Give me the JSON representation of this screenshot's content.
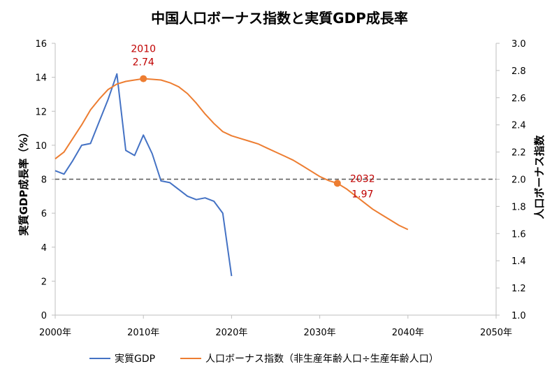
{
  "title": "中国人口ボーナス指数と実質GDP成長率",
  "chart_data": {
    "type": "line",
    "title": "中国人口ボーナス指数と実質GDP成長率",
    "xlabel": "",
    "ylabel_left": "実質GDP成長率（%）",
    "ylabel_right": "人口ボーナス指数",
    "xlim": [
      2000,
      2050
    ],
    "ylim_left": [
      0,
      16
    ],
    "ylim_right": [
      1.0,
      3.0
    ],
    "x_ticks": [
      "2000年",
      "2010年",
      "2020年",
      "2030年",
      "2040年",
      "2050年"
    ],
    "y_left_ticks": [
      "0",
      "2",
      "4",
      "6",
      "8",
      "10",
      "12",
      "14",
      "16"
    ],
    "y_right_ticks": [
      "1.0",
      "1.2",
      "1.4",
      "1.6",
      "1.8",
      "2.0",
      "2.2",
      "2.4",
      "2.6",
      "2.8",
      "3.0"
    ],
    "reference_line": {
      "axis": "right",
      "value": 2.0,
      "style": "dashed",
      "color": "#595959"
    },
    "grid": false,
    "legend_position": "bottom",
    "series": [
      {
        "name": "実質GDP",
        "axis": "left",
        "color": "#4472c4",
        "x": [
          2000,
          2001,
          2002,
          2003,
          2004,
          2005,
          2006,
          2007,
          2008,
          2009,
          2010,
          2011,
          2012,
          2013,
          2014,
          2015,
          2016,
          2017,
          2018,
          2019,
          2020
        ],
        "y": [
          8.5,
          8.3,
          9.1,
          10.0,
          10.1,
          11.4,
          12.7,
          14.2,
          9.7,
          9.4,
          10.6,
          9.5,
          7.9,
          7.8,
          7.4,
          7.0,
          6.8,
          6.9,
          6.7,
          6.0,
          2.3
        ]
      },
      {
        "name": "人口ボーナス指数（非生産年齢人口÷生産年齢人口）",
        "axis": "right",
        "color": "#ed7d31",
        "x": [
          2000,
          2001,
          2002,
          2003,
          2004,
          2005,
          2006,
          2007,
          2008,
          2009,
          2010,
          2011,
          2012,
          2013,
          2014,
          2015,
          2016,
          2017,
          2018,
          2019,
          2020,
          2021,
          2022,
          2023,
          2024,
          2025,
          2026,
          2027,
          2028,
          2029,
          2030,
          2031,
          2032,
          2033,
          2034,
          2035,
          2036,
          2037,
          2038,
          2039,
          2040
        ],
        "y": [
          2.15,
          2.2,
          2.3,
          2.4,
          2.51,
          2.59,
          2.66,
          2.7,
          2.72,
          2.73,
          2.74,
          2.735,
          2.73,
          2.71,
          2.68,
          2.63,
          2.56,
          2.48,
          2.41,
          2.35,
          2.32,
          2.3,
          2.28,
          2.26,
          2.23,
          2.2,
          2.17,
          2.14,
          2.1,
          2.06,
          2.02,
          1.99,
          1.97,
          1.93,
          1.88,
          1.83,
          1.78,
          1.74,
          1.7,
          1.66,
          1.63
        ]
      }
    ],
    "annotations": [
      {
        "series": 1,
        "x": 2010,
        "y": 2.74,
        "label_year": "2010",
        "label_value": "2.74",
        "color": "#c00000"
      },
      {
        "series": 1,
        "x": 2032,
        "y": 1.97,
        "label_year": "2032",
        "label_value": "1.97",
        "color": "#c00000"
      }
    ]
  },
  "legend": {
    "items": [
      {
        "label": "実質GDP",
        "color": "#4472c4"
      },
      {
        "label": "人口ボーナス指数（非生産年齢人口÷生産年齢人口）",
        "color": "#ed7d31"
      }
    ]
  }
}
